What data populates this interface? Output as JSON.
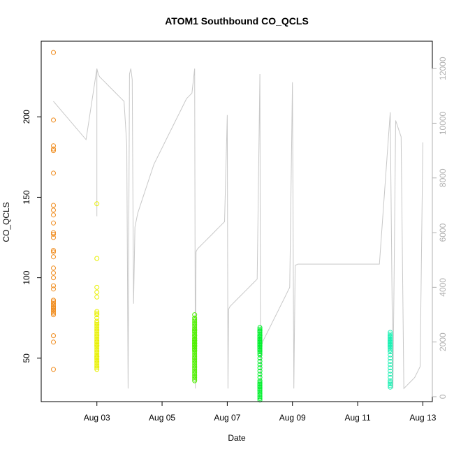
{
  "chart_data": {
    "type": "scatter",
    "title": "ATOM1 Southbound CO_QCLS",
    "xlabel": "Date",
    "ylabel": "CO_QCLS",
    "xlim": [
      "2016-08-01 07:00",
      "2016-08-13 07:00"
    ],
    "ylim": [
      23,
      247
    ],
    "y2lim": [
      -180,
      13000
    ],
    "x_ticks": [
      {
        "date": "2016-08-03",
        "label": "Aug 03"
      },
      {
        "date": "2016-08-05",
        "label": "Aug 05"
      },
      {
        "date": "2016-08-07",
        "label": "Aug 07"
      },
      {
        "date": "2016-08-09",
        "label": "Aug 09"
      },
      {
        "date": "2016-08-11",
        "label": "Aug 11"
      },
      {
        "date": "2016-08-13",
        "label": "Aug 13"
      }
    ],
    "y_ticks": [
      50,
      100,
      150,
      200
    ],
    "y2_ticks": [
      0,
      2000,
      4000,
      6000,
      8000,
      10000,
      12000
    ],
    "grid": false,
    "legend": "none",
    "point_colors": [
      "#F08C1E",
      "#E8F000",
      "#50F000",
      "#00F02D",
      "#1EF0B4"
    ],
    "altitude_color": "#c8c8c8",
    "series": [
      {
        "flight_date": "2016-08-01",
        "color_index": 0,
        "x": [
          "2016-08-01 16:00",
          "2016-08-01 16:00",
          "2016-08-01 16:00",
          "2016-08-01 16:00",
          "2016-08-01 16:00",
          "2016-08-01 16:00",
          "2016-08-01 16:00",
          "2016-08-01 16:00",
          "2016-08-01 16:00",
          "2016-08-01 16:00",
          "2016-08-01 16:00",
          "2016-08-01 16:00",
          "2016-08-01 16:00",
          "2016-08-01 16:00",
          "2016-08-01 16:00",
          "2016-08-01 16:00",
          "2016-08-01 16:00",
          "2016-08-01 16:00",
          "2016-08-01 16:00",
          "2016-08-01 16:00",
          "2016-08-01 16:00",
          "2016-08-01 16:00",
          "2016-08-01 16:00",
          "2016-08-01 16:00",
          "2016-08-01 16:00",
          "2016-08-01 16:00",
          "2016-08-01 16:00",
          "2016-08-01 16:00",
          "2016-08-01 16:00",
          "2016-08-01 16:00",
          "2016-08-01 16:00",
          "2016-08-01 16:00",
          "2016-08-01 16:00",
          "2016-08-01 16:00",
          "2016-08-01 16:00",
          "2016-08-01 16:00",
          "2016-08-01 16:00",
          "2016-08-01 16:00"
        ],
        "y": [
          240,
          198,
          182,
          180,
          179,
          165,
          145,
          142,
          139,
          134,
          128,
          127,
          125,
          117,
          116,
          113,
          106,
          103,
          100,
          95,
          93,
          86,
          85,
          84,
          83,
          82,
          82,
          81,
          80,
          80,
          79,
          78,
          77,
          64,
          60,
          43,
          81,
          86
        ]
      },
      {
        "flight_date": "2016-08-03",
        "color_index": 1,
        "x": [
          "2016-08-03 00:00",
          "2016-08-03 00:00",
          "2016-08-03 00:00",
          "2016-08-03 00:00",
          "2016-08-03 00:00",
          "2016-08-03 00:00",
          "2016-08-03 00:00",
          "2016-08-03 00:00",
          "2016-08-03 00:00",
          "2016-08-03 00:00",
          "2016-08-03 00:00",
          "2016-08-03 00:00",
          "2016-08-03 00:00",
          "2016-08-03 00:00",
          "2016-08-03 00:00",
          "2016-08-03 00:00",
          "2016-08-03 00:00",
          "2016-08-03 00:00",
          "2016-08-03 00:00",
          "2016-08-03 00:00",
          "2016-08-03 00:00",
          "2016-08-03 00:00",
          "2016-08-03 00:00",
          "2016-08-03 00:00",
          "2016-08-03 00:00",
          "2016-08-03 00:00",
          "2016-08-03 00:00",
          "2016-08-03 00:00",
          "2016-08-03 00:00",
          "2016-08-03 00:00",
          "2016-08-03 00:00",
          "2016-08-03 00:00",
          "2016-08-03 00:00",
          "2016-08-03 00:00",
          "2016-08-03 00:00",
          "2016-08-03 00:00",
          "2016-08-03 00:00",
          "2016-08-03 00:00",
          "2016-08-03 00:00",
          "2016-08-03 00:00",
          "2016-08-03 00:00",
          "2016-08-03 00:00",
          "2016-08-03 00:00",
          "2016-08-03 00:00"
        ],
        "y": [
          146,
          112,
          94,
          91,
          88,
          79,
          78,
          77,
          75,
          73,
          72,
          71,
          70,
          69,
          68,
          67,
          66,
          65,
          64,
          63,
          62,
          61,
          60,
          60,
          59,
          58,
          58,
          57,
          56,
          55,
          54,
          53,
          52,
          51,
          51,
          50,
          50,
          49,
          48,
          47,
          46,
          45,
          44,
          43
        ]
      },
      {
        "flight_date": "2016-08-06",
        "color_index": 2,
        "x": [
          "2016-08-06 00:00",
          "2016-08-06 00:00",
          "2016-08-06 00:00",
          "2016-08-06 00:00",
          "2016-08-06 00:00",
          "2016-08-06 00:00",
          "2016-08-06 00:00",
          "2016-08-06 00:00",
          "2016-08-06 00:00",
          "2016-08-06 00:00",
          "2016-08-06 00:00",
          "2016-08-06 00:00",
          "2016-08-06 00:00",
          "2016-08-06 00:00",
          "2016-08-06 00:00",
          "2016-08-06 00:00",
          "2016-08-06 00:00",
          "2016-08-06 00:00",
          "2016-08-06 00:00",
          "2016-08-06 00:00",
          "2016-08-06 00:00",
          "2016-08-06 00:00",
          "2016-08-06 00:00",
          "2016-08-06 00:00",
          "2016-08-06 00:00",
          "2016-08-06 00:00",
          "2016-08-06 00:00",
          "2016-08-06 00:00",
          "2016-08-06 00:00",
          "2016-08-06 00:00",
          "2016-08-06 00:00",
          "2016-08-06 00:00",
          "2016-08-06 00:00",
          "2016-08-06 00:00",
          "2016-08-06 00:00",
          "2016-08-06 00:00",
          "2016-08-06 00:00",
          "2016-08-06 00:00",
          "2016-08-06 00:00",
          "2016-08-06 00:00",
          "2016-08-06 00:00",
          "2016-08-06 00:00",
          "2016-08-06 00:00",
          "2016-08-06 00:00",
          "2016-08-06 00:00",
          "2016-08-06 00:00",
          "2016-08-06 00:00",
          "2016-08-06 00:00",
          "2016-08-06 00:00",
          "2016-08-06 00:00",
          "2016-08-06 00:00",
          "2016-08-06 00:00",
          "2016-08-06 00:00",
          "2016-08-06 00:00",
          "2016-08-06 00:00",
          "2016-08-06 00:00",
          "2016-08-06 00:00",
          "2016-08-06 00:00",
          "2016-08-06 00:00",
          "2016-08-06 00:00",
          "2016-08-06 00:00",
          "2016-08-06 00:00"
        ],
        "y": [
          68,
          67,
          66,
          64,
          62,
          61,
          60,
          59,
          58,
          57,
          56,
          55,
          77,
          75,
          74,
          73,
          72,
          71,
          70,
          69,
          68,
          67,
          66,
          65,
          64,
          63,
          62,
          62,
          61,
          61,
          60,
          60,
          59,
          59,
          58,
          58,
          57,
          57,
          56,
          56,
          55,
          55,
          54,
          53,
          52,
          51,
          50,
          50,
          49,
          48,
          47,
          46,
          45,
          44,
          43,
          42,
          41,
          40,
          39,
          38,
          37,
          36
        ]
      },
      {
        "flight_date": "2016-08-08",
        "color_index": 3,
        "x": [
          "2016-08-08 00:00",
          "2016-08-08 00:00",
          "2016-08-08 00:00",
          "2016-08-08 00:00",
          "2016-08-08 00:00",
          "2016-08-08 00:00",
          "2016-08-08 00:00",
          "2016-08-08 00:00",
          "2016-08-08 00:00",
          "2016-08-08 00:00",
          "2016-08-08 00:00",
          "2016-08-08 00:00",
          "2016-08-08 00:00",
          "2016-08-08 00:00",
          "2016-08-08 00:00",
          "2016-08-08 00:00",
          "2016-08-08 00:00",
          "2016-08-08 00:00",
          "2016-08-08 00:00",
          "2016-08-08 00:00",
          "2016-08-08 00:00",
          "2016-08-08 00:00",
          "2016-08-08 00:00",
          "2016-08-08 00:00",
          "2016-08-08 00:00",
          "2016-08-08 00:00",
          "2016-08-08 00:00",
          "2016-08-08 00:00",
          "2016-08-08 00:00",
          "2016-08-08 00:00",
          "2016-08-08 00:00",
          "2016-08-08 00:00",
          "2016-08-08 00:00",
          "2016-08-08 00:00",
          "2016-08-08 00:00",
          "2016-08-08 00:00",
          "2016-08-08 00:00",
          "2016-08-08 00:00",
          "2016-08-08 00:00",
          "2016-08-08 00:00",
          "2016-08-08 00:00",
          "2016-08-08 00:00",
          "2016-08-08 00:00",
          "2016-08-08 00:00",
          "2016-08-08 00:00",
          "2016-08-08 00:00",
          "2016-08-08 00:00",
          "2016-08-08 00:00",
          "2016-08-08 00:00",
          "2016-08-08 00:00",
          "2016-08-08 00:00",
          "2016-08-08 00:00",
          "2016-08-08 00:00",
          "2016-08-08 00:00",
          "2016-08-08 00:00",
          "2016-08-08 00:00",
          "2016-08-08 00:00",
          "2016-08-08 00:00",
          "2016-08-08 00:00",
          "2016-08-08 00:00"
        ],
        "y": [
          69,
          67,
          66,
          64,
          63,
          62,
          61,
          60,
          59,
          58,
          57,
          34,
          33,
          32,
          68,
          67,
          66,
          65,
          64,
          63,
          62,
          62,
          61,
          61,
          60,
          60,
          59,
          59,
          58,
          58,
          57,
          57,
          56,
          56,
          55,
          55,
          54,
          53,
          52,
          50,
          48,
          46,
          44,
          42,
          40,
          38,
          36,
          35,
          34,
          33,
          32,
          31,
          30,
          30,
          29,
          28,
          27,
          26,
          25,
          24
        ]
      },
      {
        "flight_date": "2016-08-12",
        "color_index": 4,
        "x": [
          "2016-08-12 00:00",
          "2016-08-12 00:00",
          "2016-08-12 00:00",
          "2016-08-12 00:00",
          "2016-08-12 00:00",
          "2016-08-12 00:00",
          "2016-08-12 00:00",
          "2016-08-12 00:00",
          "2016-08-12 00:00",
          "2016-08-12 00:00",
          "2016-08-12 00:00",
          "2016-08-12 00:00",
          "2016-08-12 00:00",
          "2016-08-12 00:00",
          "2016-08-12 00:00",
          "2016-08-12 00:00",
          "2016-08-12 00:00",
          "2016-08-12 00:00",
          "2016-08-12 00:00",
          "2016-08-12 00:00",
          "2016-08-12 00:00",
          "2016-08-12 00:00",
          "2016-08-12 00:00",
          "2016-08-12 00:00",
          "2016-08-12 00:00",
          "2016-08-12 00:00",
          "2016-08-12 00:00",
          "2016-08-12 00:00",
          "2016-08-12 00:00",
          "2016-08-12 00:00",
          "2016-08-12 00:00",
          "2016-08-12 00:00",
          "2016-08-12 00:00",
          "2016-08-12 00:00",
          "2016-08-12 00:00",
          "2016-08-12 00:00",
          "2016-08-12 00:00",
          "2016-08-12 00:00",
          "2016-08-12 00:00",
          "2016-08-12 00:00",
          "2016-08-12 00:00",
          "2016-08-12 00:00",
          "2016-08-12 00:00",
          "2016-08-12 00:00",
          "2016-08-12 00:00",
          "2016-08-12 00:00",
          "2016-08-12 00:00",
          "2016-08-12 00:00"
        ],
        "y": [
          64,
          63,
          63,
          62,
          62,
          61,
          61,
          60,
          60,
          60,
          59,
          59,
          58,
          58,
          57,
          57,
          56,
          55,
          54,
          52,
          50,
          48,
          46,
          44,
          42,
          40,
          38,
          36,
          35,
          34,
          33,
          32,
          66,
          65,
          64,
          63,
          62,
          61,
          61,
          60,
          60,
          59,
          59,
          58,
          58,
          57,
          57,
          56
        ]
      }
    ],
    "altitude_series": {
      "x": [
        "2016-08-01 16:00",
        "2016-08-02 16:00",
        "2016-08-03 00:00",
        "2016-08-03 00:00",
        "2016-08-03 00:00",
        "2016-08-03 01:00",
        "2016-08-03 02:00",
        "2016-08-03 04:00",
        "2016-08-03 06:00",
        "2016-08-03 08:00",
        "2016-08-03 10:00",
        "2016-08-03 12:00",
        "2016-08-03 14:00",
        "2016-08-03 16:00",
        "2016-08-03 18:00",
        "2016-08-03 20:00",
        "2016-08-03 22:00",
        "2016-08-03 23:00",
        "2016-08-04 00:00",
        "2016-08-04 01:00",
        "2016-08-04 02:00",
        "2016-08-04 03:00",
        "2016-08-04 04:00",
        "2016-08-04 06:00",
        "2016-08-04 08:00",
        "2016-08-04 10:00",
        "2016-08-04 12:00",
        "2016-08-04 14:00",
        "2016-08-04 16:00",
        "2016-08-04 18:00",
        "2016-08-04 20:00",
        "2016-08-04 22:00",
        "2016-08-05 00:00",
        "2016-08-05 02:00",
        "2016-08-05 04:00",
        "2016-08-05 06:00",
        "2016-08-05 08:00",
        "2016-08-05 10:00",
        "2016-08-05 12:00",
        "2016-08-05 14:00",
        "2016-08-05 16:00",
        "2016-08-05 18:00",
        "2016-08-05 20:00",
        "2016-08-05 22:00",
        "2016-08-06 00:00",
        "2016-08-06 00:30",
        "2016-08-06 01:00",
        "2016-08-06 02:00",
        "2016-08-06 04:00",
        "2016-08-06 06:00",
        "2016-08-06 08:00",
        "2016-08-06 10:00",
        "2016-08-06 12:00",
        "2016-08-06 14:00",
        "2016-08-06 16:00",
        "2016-08-06 18:00",
        "2016-08-06 20:00",
        "2016-08-06 22:00",
        "2016-08-07 00:00",
        "2016-08-07 00:30",
        "2016-08-07 01:00",
        "2016-08-07 02:00",
        "2016-08-07 04:00",
        "2016-08-07 06:00",
        "2016-08-07 08:00",
        "2016-08-07 10:00",
        "2016-08-07 12:00",
        "2016-08-07 14:00",
        "2016-08-07 16:00",
        "2016-08-07 18:00",
        "2016-08-07 20:00",
        "2016-08-07 22:00",
        "2016-08-08 00:00",
        "2016-08-08 00:30",
        "2016-08-08 01:00",
        "2016-08-08 02:00",
        "2016-08-08 04:00",
        "2016-08-08 06:00",
        "2016-08-08 08:00",
        "2016-08-08 10:00",
        "2016-08-08 12:00",
        "2016-08-08 14:00",
        "2016-08-08 16:00",
        "2016-08-08 18:00",
        "2016-08-08 20:00",
        "2016-08-08 22:00",
        "2016-08-09 00:00",
        "2016-08-09 01:00",
        "2016-08-09 02:00",
        "2016-08-09 04:00",
        "2016-08-09 08:00",
        "2016-08-09 12:00",
        "2016-08-09 16:00",
        "2016-08-09 20:00",
        "2016-08-10 00:00",
        "2016-08-10 08:00",
        "2016-08-10 16:00",
        "2016-08-11 00:00",
        "2016-08-11 08:00",
        "2016-08-11 16:00",
        "2016-08-12 00:00",
        "2016-08-12 02:00",
        "2016-08-12 04:00",
        "2016-08-12 06:00",
        "2016-08-12 08:00",
        "2016-08-12 10:00",
        "2016-08-12 12:00",
        "2016-08-12 14:00",
        "2016-08-12 16:00",
        "2016-08-12 18:00",
        "2016-08-12 20:00",
        "2016-08-12 22:00",
        "2016-08-13 00:00"
      ],
      "y": [
        10800,
        9400,
        12000,
        6600,
        12000,
        11800,
        11700,
        11600,
        11500,
        11400,
        11300,
        11200,
        11100,
        11000,
        10900,
        10800,
        9200,
        300,
        11800,
        12000,
        11600,
        3400,
        6200,
        6700,
        7000,
        7300,
        7600,
        7900,
        8200,
        8500,
        8700,
        8900,
        9100,
        9300,
        9500,
        9700,
        9900,
        10100,
        10300,
        10500,
        10700,
        10900,
        11000,
        11100,
        12000,
        300,
        5300,
        5400,
        5500,
        5600,
        5700,
        5800,
        5900,
        6000,
        6100,
        6200,
        6300,
        6400,
        10300,
        300,
        3200,
        3300,
        3400,
        3500,
        3600,
        3700,
        3800,
        3900,
        4000,
        4100,
        4200,
        4300,
        11800,
        300,
        1800,
        2000,
        2200,
        2400,
        2600,
        2800,
        3000,
        3200,
        3400,
        3600,
        3800,
        4000,
        11500,
        300,
        4800,
        4850,
        4850,
        4850,
        4850,
        4850,
        4850,
        4850,
        4850,
        4850,
        4850,
        4850,
        10400,
        300,
        10100,
        9800,
        9500,
        300,
        400,
        500,
        600,
        700,
        900,
        1100,
        9300
      ]
    }
  }
}
